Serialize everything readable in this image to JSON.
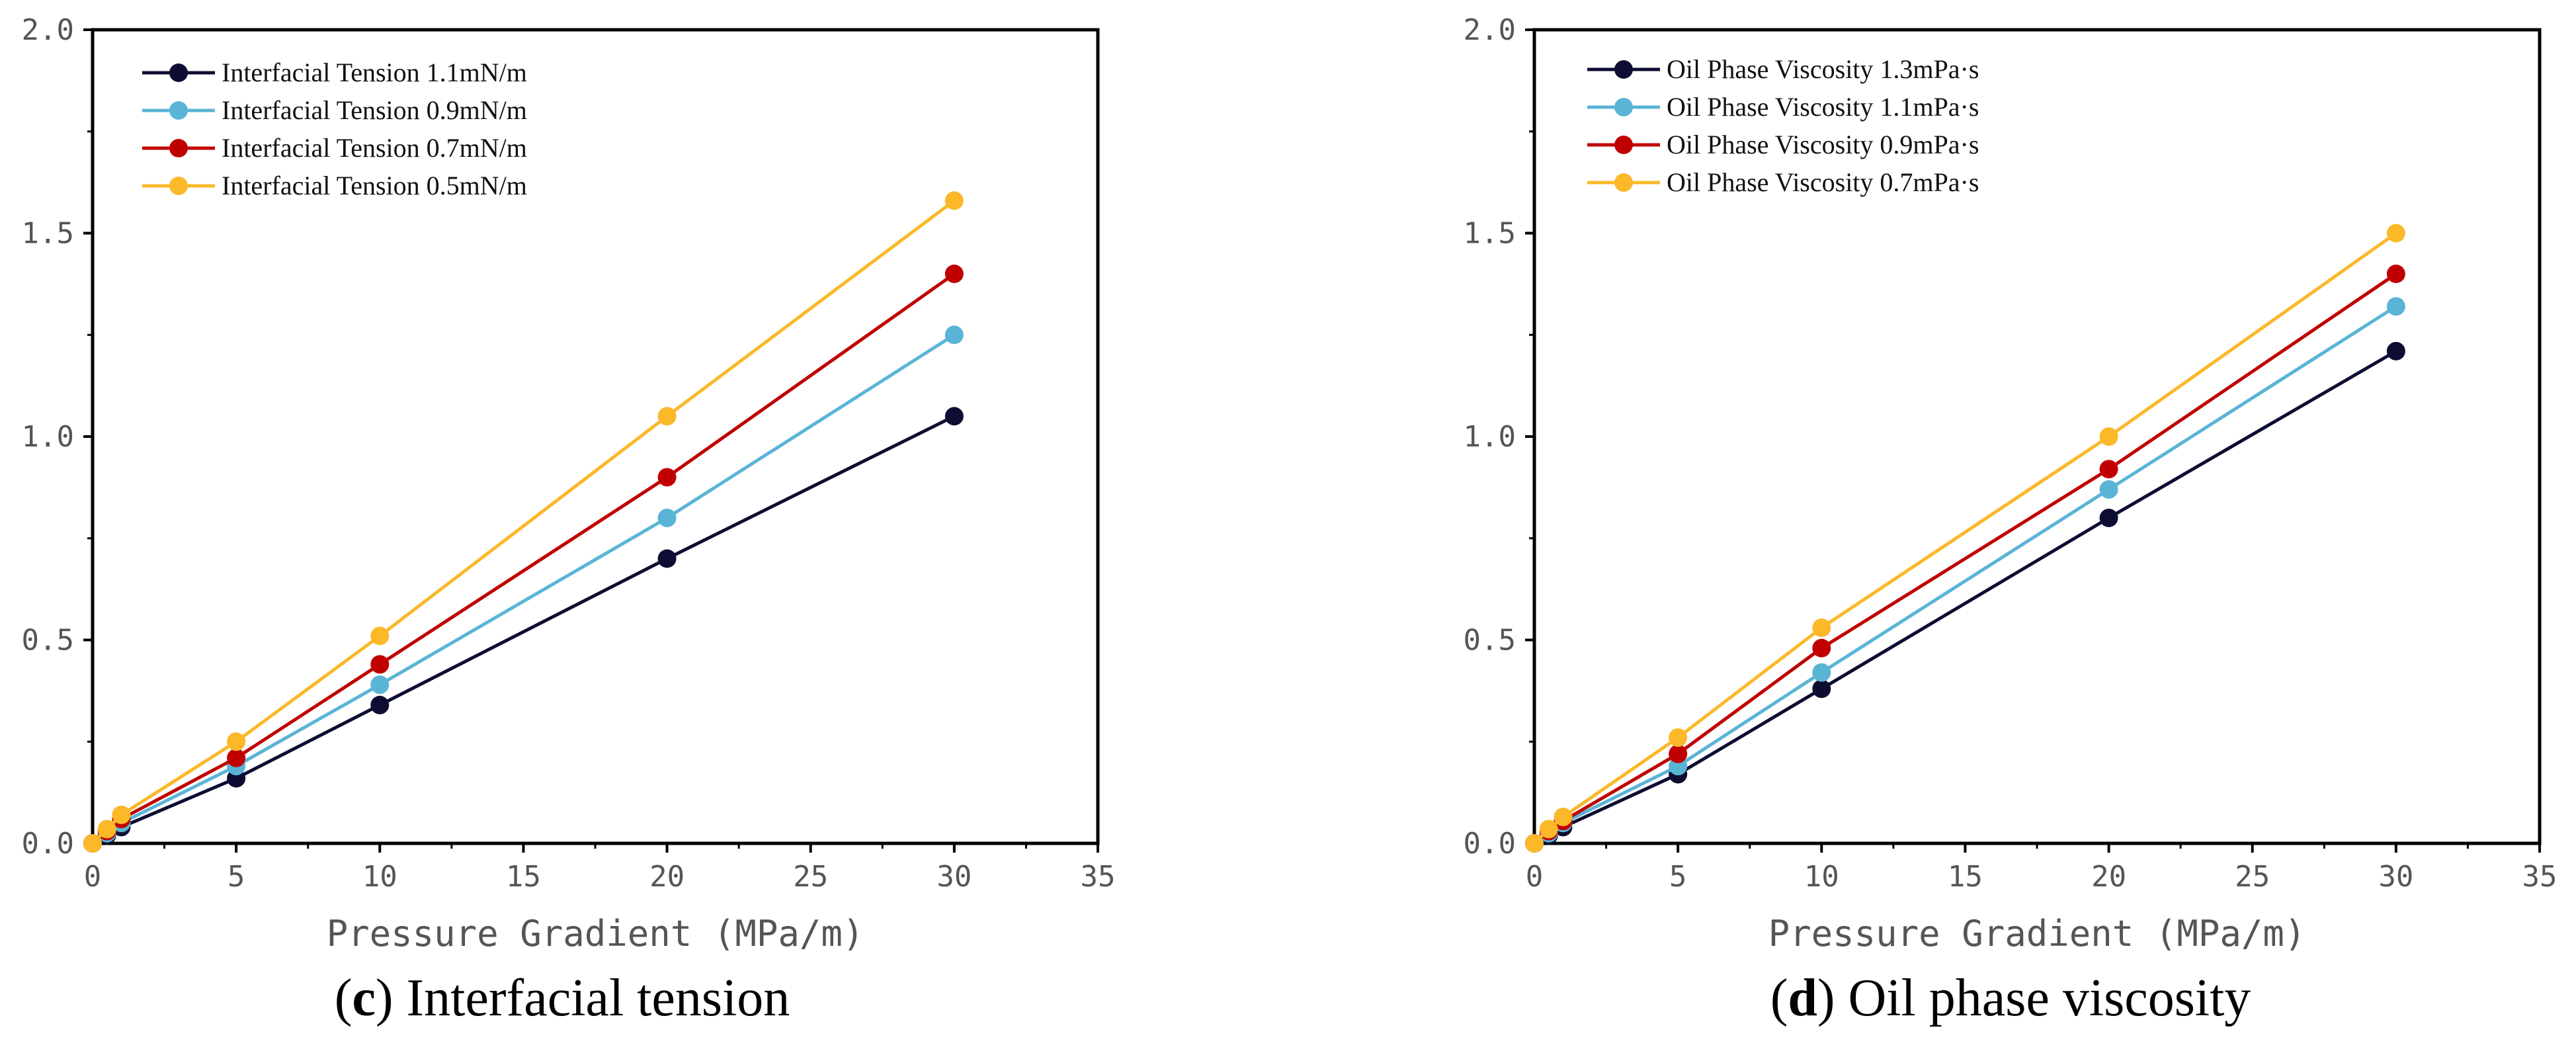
{
  "chart_data": [
    {
      "type": "line",
      "panel_letter": "c",
      "caption_text": " Interfacial tension",
      "xlabel": "Pressure Gradient (MPa/m)",
      "ylabel": "",
      "xlim": [
        0,
        35
      ],
      "ylim": [
        0,
        2.0
      ],
      "x_ticks": [
        0,
        5,
        10,
        15,
        20,
        25,
        30,
        35
      ],
      "x_tick_labels": [
        "0",
        "5",
        "10",
        "15",
        "20",
        "25",
        "30",
        "35"
      ],
      "y_ticks": [
        0,
        0.5,
        1.0,
        1.5,
        2.0
      ],
      "y_tick_labels": [
        "0.0",
        "0.5",
        "1.0",
        "1.5",
        "2.0"
      ],
      "legend_position": "top-left",
      "grid": false,
      "x": [
        0,
        0.5,
        1,
        5,
        10,
        20,
        30
      ],
      "series": [
        {
          "name": "Interfacial Tension 1.1mN/m",
          "color": "#0d0d33",
          "values": [
            0,
            0.02,
            0.04,
            0.16,
            0.34,
            0.7,
            1.05
          ]
        },
        {
          "name": "Interfacial Tension 0.9mN/m",
          "color": "#5ab4d6",
          "values": [
            0,
            0.025,
            0.05,
            0.19,
            0.39,
            0.8,
            1.25
          ]
        },
        {
          "name": "Interfacial Tension 0.7mN/m",
          "color": "#c00000",
          "values": [
            0,
            0.03,
            0.06,
            0.21,
            0.44,
            0.9,
            1.4
          ]
        },
        {
          "name": "Interfacial Tension 0.5mN/m",
          "color": "#fbb829",
          "values": [
            0,
            0.035,
            0.07,
            0.25,
            0.51,
            1.05,
            1.58
          ]
        }
      ]
    },
    {
      "type": "line",
      "panel_letter": "d",
      "caption_text": " Oil phase viscosity",
      "xlabel": "Pressure Gradient (MPa/m)",
      "ylabel": "",
      "xlim": [
        0,
        35
      ],
      "ylim": [
        0,
        2.0
      ],
      "x_ticks": [
        0,
        5,
        10,
        15,
        20,
        25,
        30,
        35
      ],
      "x_tick_labels": [
        "0",
        "5",
        "10",
        "15",
        "20",
        "25",
        "30",
        "35"
      ],
      "y_ticks": [
        0,
        0.5,
        1.0,
        1.5,
        2.0
      ],
      "y_tick_labels": [
        "0.0",
        "0.5",
        "1.0",
        "1.5",
        "2.0"
      ],
      "legend_position": "top-left",
      "grid": false,
      "x": [
        0,
        0.5,
        1,
        5,
        10,
        20,
        30
      ],
      "series": [
        {
          "name": "Oil Phase Viscosity 1.3mPa·s",
          "color": "#0d0d33",
          "values": [
            0,
            0.02,
            0.04,
            0.17,
            0.38,
            0.8,
            1.21
          ]
        },
        {
          "name": "Oil Phase Viscosity 1.1mPa·s",
          "color": "#5ab4d6",
          "values": [
            0,
            0.025,
            0.05,
            0.19,
            0.42,
            0.87,
            1.32
          ]
        },
        {
          "name": "Oil Phase Viscosity 0.9mPa·s",
          "color": "#c00000",
          "values": [
            0,
            0.03,
            0.055,
            0.22,
            0.48,
            0.92,
            1.4
          ]
        },
        {
          "name": "Oil Phase Viscosity 0.7mPa·s",
          "color": "#fbb829",
          "values": [
            0,
            0.035,
            0.065,
            0.26,
            0.53,
            1.0,
            1.5
          ]
        }
      ]
    }
  ]
}
